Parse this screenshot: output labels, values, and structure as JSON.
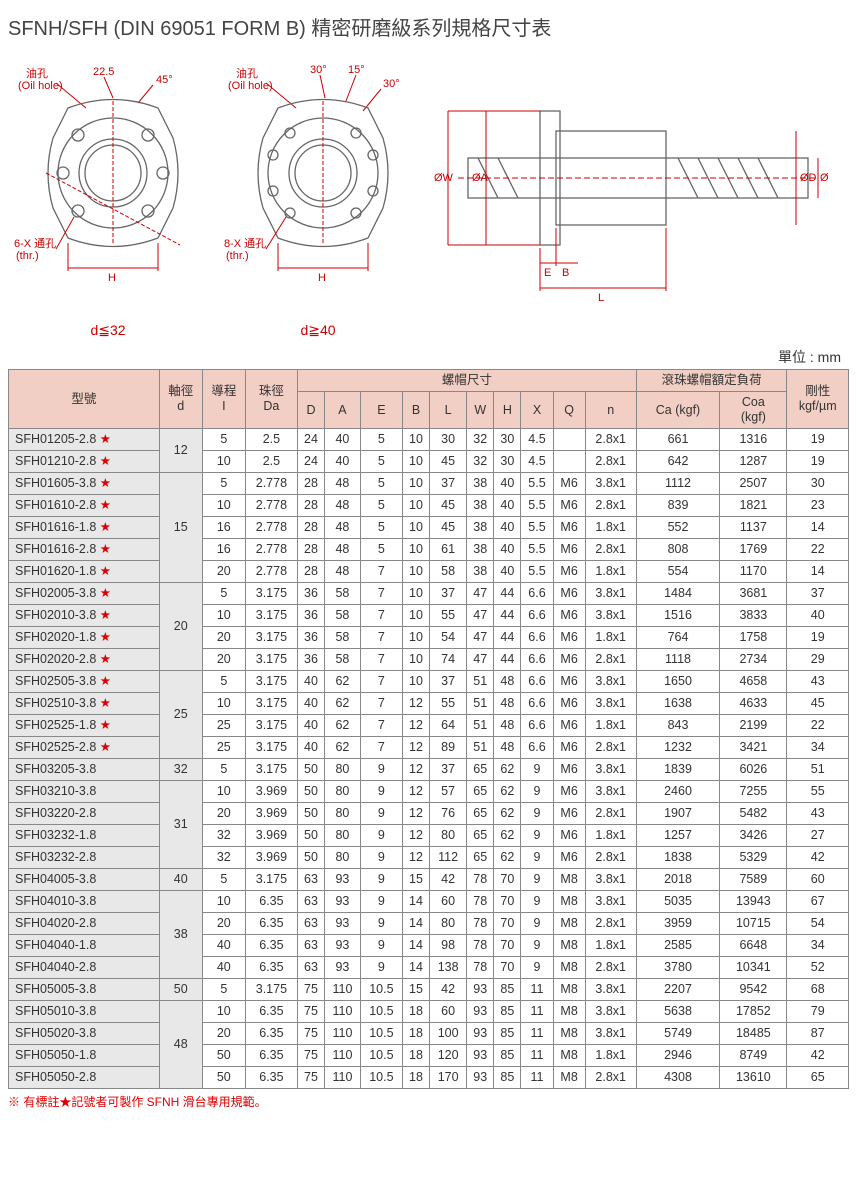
{
  "title": "SFNH/SFH (DIN 69051 FORM B) 精密研磨級系列規格尺寸表",
  "unit": "單位 : mm",
  "diag": {
    "oil_zh": "油孔",
    "oil_en": "(Oil hole)",
    "thru6": "6-X 通孔",
    "thru8": "8-X 通孔",
    "thr": "(thr.)",
    "a225": "22.5",
    "a45": "45°",
    "a30": "30°",
    "a15": "15°",
    "H": "H",
    "d32": "d≦32",
    "d40": "d≧40",
    "W": "ØW",
    "A": "ØA",
    "D": "ØD",
    "dd": "Ød",
    "E": "E",
    "B": "B",
    "L": "L"
  },
  "headers": {
    "model": "型號",
    "d": "軸徑\nd",
    "I": "導程\nI",
    "Da": "珠徑\nDa",
    "nut": "螺帽尺寸",
    "load": "滾珠螺帽額定負荷",
    "rigid": "剛性\nkgf/µm",
    "D": "D",
    "A": "A",
    "E": "E",
    "B": "B",
    "L": "L",
    "W": "W",
    "H": "H",
    "X": "X",
    "Q": "Q",
    "n": "n",
    "Ca": "Ca (kgf)",
    "Coa": "Coa\n(kgf)"
  },
  "groups": [
    {
      "d": "12",
      "rows": [
        {
          "m": "SFH01205-2.8",
          "s": 1,
          "v": [
            "5",
            "2.5",
            "24",
            "40",
            "5",
            "10",
            "30",
            "32",
            "30",
            "4.5",
            "",
            "2.8x1",
            "661",
            "1316",
            "19"
          ]
        },
        {
          "m": "SFH01210-2.8",
          "s": 1,
          "v": [
            "10",
            "2.5",
            "24",
            "40",
            "5",
            "10",
            "45",
            "32",
            "30",
            "4.5",
            "",
            "2.8x1",
            "642",
            "1287",
            "19"
          ]
        }
      ]
    },
    {
      "d": "15",
      "rows": [
        {
          "m": "SFH01605-3.8",
          "s": 1,
          "v": [
            "5",
            "2.778",
            "28",
            "48",
            "5",
            "10",
            "37",
            "38",
            "40",
            "5.5",
            "M6",
            "3.8x1",
            "1112",
            "2507",
            "30"
          ]
        },
        {
          "m": "SFH01610-2.8",
          "s": 1,
          "v": [
            "10",
            "2.778",
            "28",
            "48",
            "5",
            "10",
            "45",
            "38",
            "40",
            "5.5",
            "M6",
            "2.8x1",
            "839",
            "1821",
            "23"
          ]
        },
        {
          "m": "SFH01616-1.8",
          "s": 1,
          "v": [
            "16",
            "2.778",
            "28",
            "48",
            "5",
            "10",
            "45",
            "38",
            "40",
            "5.5",
            "M6",
            "1.8x1",
            "552",
            "1137",
            "14"
          ]
        },
        {
          "m": "SFH01616-2.8",
          "s": 1,
          "v": [
            "16",
            "2.778",
            "28",
            "48",
            "5",
            "10",
            "61",
            "38",
            "40",
            "5.5",
            "M6",
            "2.8x1",
            "808",
            "1769",
            "22"
          ]
        },
        {
          "m": "SFH01620-1.8",
          "s": 1,
          "v": [
            "20",
            "2.778",
            "28",
            "48",
            "7",
            "10",
            "58",
            "38",
            "40",
            "5.5",
            "M6",
            "1.8x1",
            "554",
            "1170",
            "14"
          ]
        }
      ]
    },
    {
      "d": "20",
      "rows": [
        {
          "m": "SFH02005-3.8",
          "s": 1,
          "v": [
            "5",
            "3.175",
            "36",
            "58",
            "7",
            "10",
            "37",
            "47",
            "44",
            "6.6",
            "M6",
            "3.8x1",
            "1484",
            "3681",
            "37"
          ]
        },
        {
          "m": "SFH02010-3.8",
          "s": 1,
          "v": [
            "10",
            "3.175",
            "36",
            "58",
            "7",
            "10",
            "55",
            "47",
            "44",
            "6.6",
            "M6",
            "3.8x1",
            "1516",
            "3833",
            "40"
          ]
        },
        {
          "m": "SFH02020-1.8",
          "s": 1,
          "v": [
            "20",
            "3.175",
            "36",
            "58",
            "7",
            "10",
            "54",
            "47",
            "44",
            "6.6",
            "M6",
            "1.8x1",
            "764",
            "1758",
            "19"
          ]
        },
        {
          "m": "SFH02020-2.8",
          "s": 1,
          "v": [
            "20",
            "3.175",
            "36",
            "58",
            "7",
            "10",
            "74",
            "47",
            "44",
            "6.6",
            "M6",
            "2.8x1",
            "1118",
            "2734",
            "29"
          ]
        }
      ]
    },
    {
      "d": "25",
      "rows": [
        {
          "m": "SFH02505-3.8",
          "s": 1,
          "v": [
            "5",
            "3.175",
            "40",
            "62",
            "7",
            "10",
            "37",
            "51",
            "48",
            "6.6",
            "M6",
            "3.8x1",
            "1650",
            "4658",
            "43"
          ]
        },
        {
          "m": "SFH02510-3.8",
          "s": 1,
          "v": [
            "10",
            "3.175",
            "40",
            "62",
            "7",
            "12",
            "55",
            "51",
            "48",
            "6.6",
            "M6",
            "3.8x1",
            "1638",
            "4633",
            "45"
          ]
        },
        {
          "m": "SFH02525-1.8",
          "s": 1,
          "v": [
            "25",
            "3.175",
            "40",
            "62",
            "7",
            "12",
            "64",
            "51",
            "48",
            "6.6",
            "M6",
            "1.8x1",
            "843",
            "2199",
            "22"
          ]
        },
        {
          "m": "SFH02525-2.8",
          "s": 1,
          "v": [
            "25",
            "3.175",
            "40",
            "62",
            "7",
            "12",
            "89",
            "51",
            "48",
            "6.6",
            "M6",
            "2.8x1",
            "1232",
            "3421",
            "34"
          ]
        }
      ]
    },
    {
      "d": "32",
      "rows": [
        {
          "m": "SFH03205-3.8",
          "s": 0,
          "v": [
            "5",
            "3.175",
            "50",
            "80",
            "9",
            "12",
            "37",
            "65",
            "62",
            "9",
            "M6",
            "3.8x1",
            "1839",
            "6026",
            "51"
          ]
        }
      ]
    },
    {
      "d": "31",
      "rows": [
        {
          "m": "SFH03210-3.8",
          "s": 0,
          "v": [
            "10",
            "3.969",
            "50",
            "80",
            "9",
            "12",
            "57",
            "65",
            "62",
            "9",
            "M6",
            "3.8x1",
            "2460",
            "7255",
            "55"
          ]
        },
        {
          "m": "SFH03220-2.8",
          "s": 0,
          "v": [
            "20",
            "3.969",
            "50",
            "80",
            "9",
            "12",
            "76",
            "65",
            "62",
            "9",
            "M6",
            "2.8x1",
            "1907",
            "5482",
            "43"
          ]
        },
        {
          "m": "SFH03232-1.8",
          "s": 0,
          "v": [
            "32",
            "3.969",
            "50",
            "80",
            "9",
            "12",
            "80",
            "65",
            "62",
            "9",
            "M6",
            "1.8x1",
            "1257",
            "3426",
            "27"
          ]
        },
        {
          "m": "SFH03232-2.8",
          "s": 0,
          "v": [
            "32",
            "3.969",
            "50",
            "80",
            "9",
            "12",
            "112",
            "65",
            "62",
            "9",
            "M6",
            "2.8x1",
            "1838",
            "5329",
            "42"
          ]
        }
      ]
    },
    {
      "d": "40",
      "rows": [
        {
          "m": "SFH04005-3.8",
          "s": 0,
          "v": [
            "5",
            "3.175",
            "63",
            "93",
            "9",
            "15",
            "42",
            "78",
            "70",
            "9",
            "M8",
            "3.8x1",
            "2018",
            "7589",
            "60"
          ]
        }
      ]
    },
    {
      "d": "38",
      "rows": [
        {
          "m": "SFH04010-3.8",
          "s": 0,
          "v": [
            "10",
            "6.35",
            "63",
            "93",
            "9",
            "14",
            "60",
            "78",
            "70",
            "9",
            "M8",
            "3.8x1",
            "5035",
            "13943",
            "67"
          ]
        },
        {
          "m": "SFH04020-2.8",
          "s": 0,
          "v": [
            "20",
            "6.35",
            "63",
            "93",
            "9",
            "14",
            "80",
            "78",
            "70",
            "9",
            "M8",
            "2.8x1",
            "3959",
            "10715",
            "54"
          ]
        },
        {
          "m": "SFH04040-1.8",
          "s": 0,
          "v": [
            "40",
            "6.35",
            "63",
            "93",
            "9",
            "14",
            "98",
            "78",
            "70",
            "9",
            "M8",
            "1.8x1",
            "2585",
            "6648",
            "34"
          ]
        },
        {
          "m": "SFH04040-2.8",
          "s": 0,
          "v": [
            "40",
            "6.35",
            "63",
            "93",
            "9",
            "14",
            "138",
            "78",
            "70",
            "9",
            "M8",
            "2.8x1",
            "3780",
            "10341",
            "52"
          ]
        }
      ]
    },
    {
      "d": "50",
      "rows": [
        {
          "m": "SFH05005-3.8",
          "s": 0,
          "v": [
            "5",
            "3.175",
            "75",
            "110",
            "10.5",
            "15",
            "42",
            "93",
            "85",
            "11",
            "M8",
            "3.8x1",
            "2207",
            "9542",
            "68"
          ]
        }
      ]
    },
    {
      "d": "48",
      "rows": [
        {
          "m": "SFH05010-3.8",
          "s": 0,
          "v": [
            "10",
            "6.35",
            "75",
            "110",
            "10.5",
            "18",
            "60",
            "93",
            "85",
            "11",
            "M8",
            "3.8x1",
            "5638",
            "17852",
            "79"
          ]
        },
        {
          "m": "SFH05020-3.8",
          "s": 0,
          "v": [
            "20",
            "6.35",
            "75",
            "110",
            "10.5",
            "18",
            "100",
            "93",
            "85",
            "11",
            "M8",
            "3.8x1",
            "5749",
            "18485",
            "87"
          ]
        },
        {
          "m": "SFH05050-1.8",
          "s": 0,
          "v": [
            "50",
            "6.35",
            "75",
            "110",
            "10.5",
            "18",
            "120",
            "93",
            "85",
            "11",
            "M8",
            "1.8x1",
            "2946",
            "8749",
            "42"
          ]
        },
        {
          "m": "SFH05050-2.8",
          "s": 0,
          "v": [
            "50",
            "6.35",
            "75",
            "110",
            "10.5",
            "18",
            "170",
            "93",
            "85",
            "11",
            "M8",
            "2.8x1",
            "4308",
            "13610",
            "65"
          ]
        }
      ]
    }
  ],
  "footnote": "※ 有標註★記號者可製作 SFNH 滑台專用規範。"
}
